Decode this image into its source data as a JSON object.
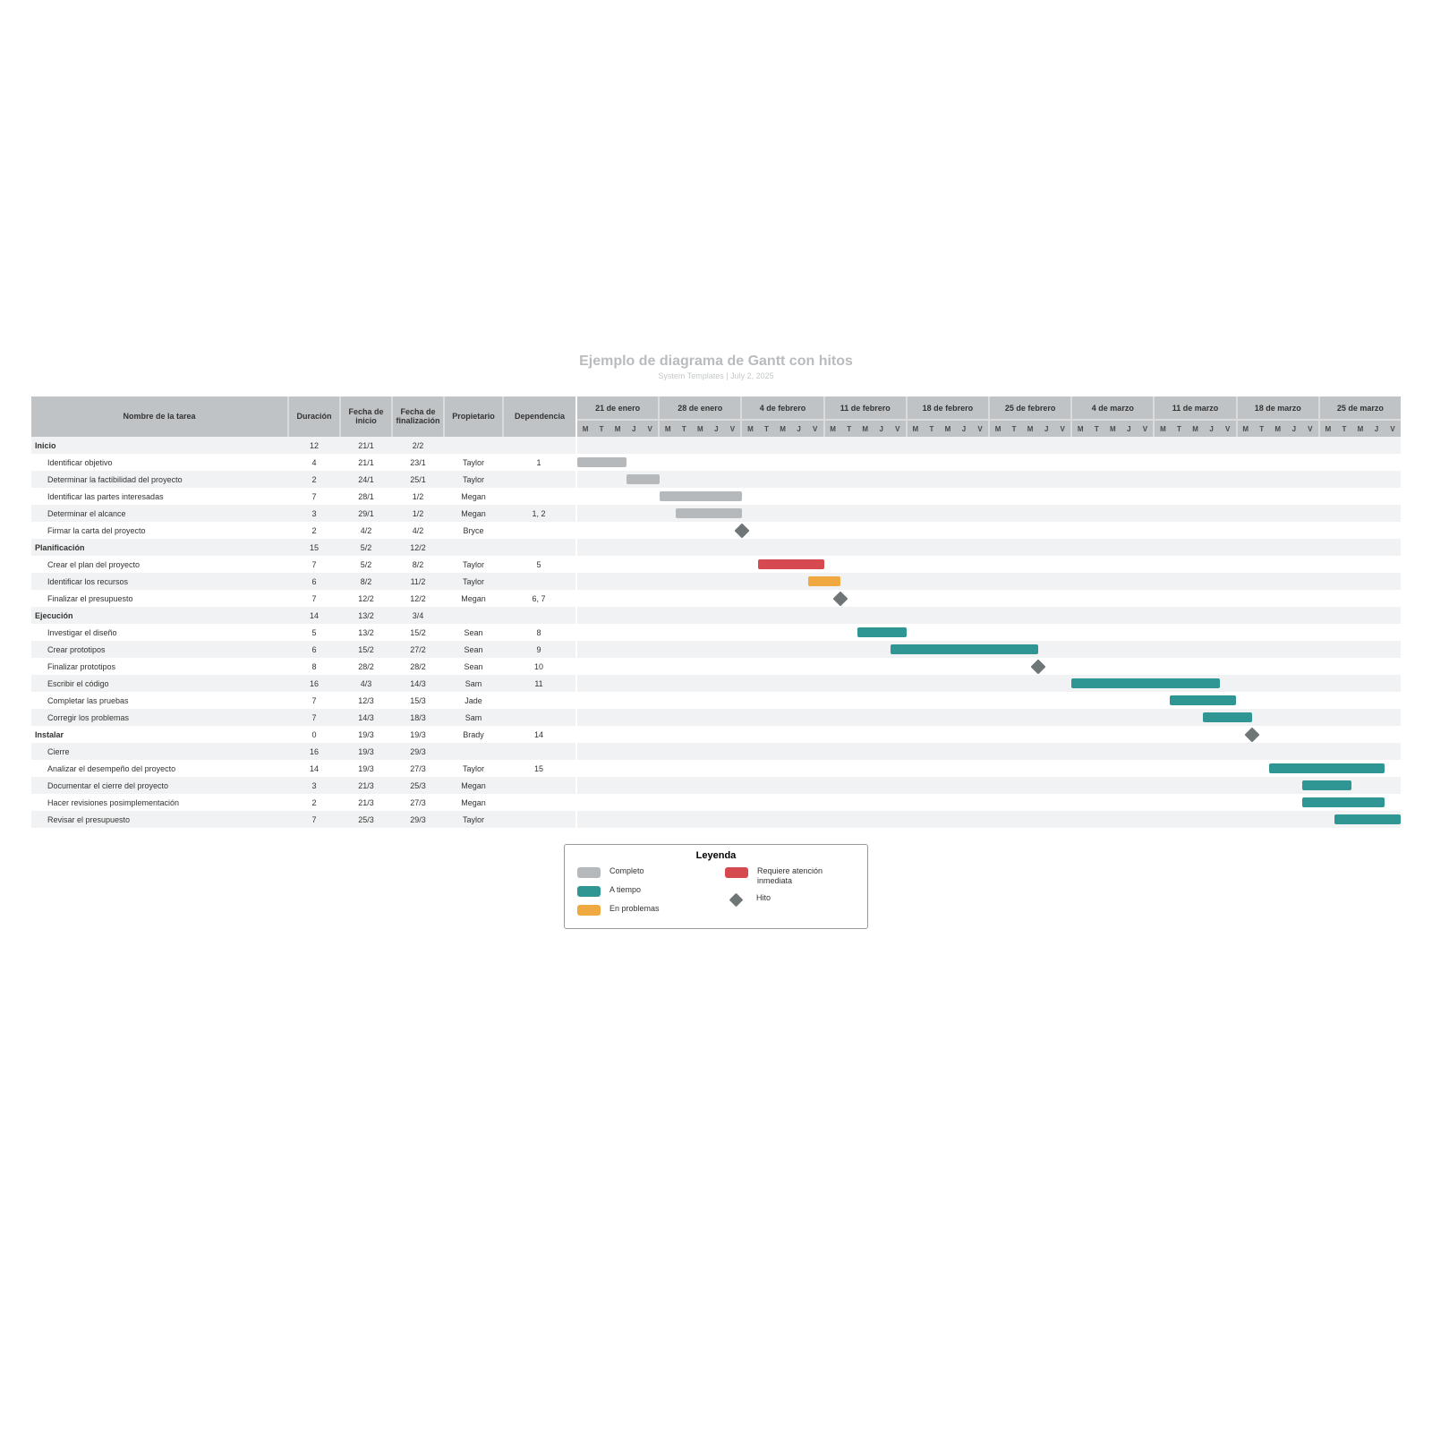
{
  "title": "Ejemplo de diagrama de Gantt con hitos",
  "subtitle": "System Templates  |  July 2, 2025",
  "colors": {
    "complete": "#b5b9bc",
    "ontime": "#2f9693",
    "trouble": "#f0a840",
    "urgent": "#d64a4f",
    "milestone": "#6f7678",
    "header_bg": "#bfc3c6",
    "row_even": "#f1f2f3",
    "row_odd": "#ffffff",
    "dep_line": "#8e9396"
  },
  "columns": {
    "name": "Nombre de la tarea",
    "duration": "Duración",
    "start": "Fecha de inicio",
    "end": "Fecha de finalización",
    "owner": "Propietario",
    "dep": "Dependencia"
  },
  "gantt": {
    "day_labels": [
      "M",
      "T",
      "M",
      "J",
      "V"
    ],
    "weeks": [
      "21 de enero",
      "28 de enero",
      "4 de febrero",
      "11 de febrero",
      "18 de febrero",
      "25 de febrero",
      "4 de marzo",
      "11 de marzo",
      "18 de marzo",
      "25 de marzo"
    ],
    "total_days": 50
  },
  "rows": [
    {
      "type": "group",
      "name": "Inicio",
      "dur": "12",
      "start": "21/1",
      "end": "2/2"
    },
    {
      "type": "task",
      "name": "Identificar objetivo",
      "dur": "4",
      "start": "21/1",
      "end": "23/1",
      "owner": "Taylor",
      "dep": "1",
      "bar": {
        "start": 0,
        "span": 3,
        "status": "complete"
      }
    },
    {
      "type": "task",
      "name": "Determinar la factibilidad del proyecto",
      "dur": "2",
      "start": "24/1",
      "end": "25/1",
      "owner": "Taylor",
      "bar": {
        "start": 3,
        "span": 2,
        "status": "complete"
      }
    },
    {
      "type": "task",
      "name": "Identificar las partes interesadas",
      "dur": "7",
      "start": "28/1",
      "end": "1/2",
      "owner": "Megan",
      "bar": {
        "start": 5,
        "span": 5,
        "status": "complete"
      }
    },
    {
      "type": "task",
      "name": "Determinar el alcance",
      "dur": "3",
      "start": "29/1",
      "end": "1/2",
      "owner": "Megan",
      "dep": "1, 2",
      "bar": {
        "start": 6,
        "span": 4,
        "status": "complete"
      }
    },
    {
      "type": "task",
      "name": "Firmar la carta del proyecto",
      "dur": "2",
      "start": "4/2",
      "end": "4/2",
      "owner": "Bryce",
      "milestone": {
        "day": 10
      }
    },
    {
      "type": "group",
      "name": "Planificación",
      "dur": "15",
      "start": "5/2",
      "end": "12/2"
    },
    {
      "type": "task",
      "name": "Crear el plan del proyecto",
      "dur": "7",
      "start": "5/2",
      "end": "8/2",
      "owner": "Taylor",
      "dep": "5",
      "bar": {
        "start": 11,
        "span": 4,
        "status": "urgent"
      }
    },
    {
      "type": "task",
      "name": "Identificar los recursos",
      "dur": "6",
      "start": "8/2",
      "end": "11/2",
      "owner": "Taylor",
      "bar": {
        "start": 14,
        "span": 2,
        "status": "trouble"
      }
    },
    {
      "type": "task",
      "name": "Finalizar el presupuesto",
      "dur": "7",
      "start": "12/2",
      "end": "12/2",
      "owner": "Megan",
      "dep": "6, 7",
      "milestone": {
        "day": 16
      }
    },
    {
      "type": "group",
      "name": "Ejecución",
      "dur": "14",
      "start": "13/2",
      "end": "3/4"
    },
    {
      "type": "task",
      "name": "Investigar el diseño",
      "dur": "5",
      "start": "13/2",
      "end": "15/2",
      "owner": "Sean",
      "dep": "8",
      "bar": {
        "start": 17,
        "span": 3,
        "status": "ontime"
      }
    },
    {
      "type": "task",
      "name": "Crear prototipos",
      "dur": "6",
      "start": "15/2",
      "end": "27/2",
      "owner": "Sean",
      "dep": "9",
      "bar": {
        "start": 19,
        "span": 9,
        "status": "ontime"
      }
    },
    {
      "type": "task",
      "name": "Finalizar prototipos",
      "dur": "8",
      "start": "28/2",
      "end": "28/2",
      "owner": "Sean",
      "dep": "10",
      "milestone": {
        "day": 28
      }
    },
    {
      "type": "task",
      "name": "Escribir el código",
      "dur": "16",
      "start": "4/3",
      "end": "14/3",
      "owner": "Sam",
      "dep": "11",
      "bar": {
        "start": 30,
        "span": 9,
        "status": "ontime"
      }
    },
    {
      "type": "task",
      "name": "Completar las pruebas",
      "dur": "7",
      "start": "12/3",
      "end": "15/3",
      "owner": "Jade",
      "bar": {
        "start": 36,
        "span": 4,
        "status": "ontime"
      }
    },
    {
      "type": "task",
      "name": "Corregir los problemas",
      "dur": "7",
      "start": "14/3",
      "end": "18/3",
      "owner": "Sam",
      "bar": {
        "start": 38,
        "span": 3,
        "status": "ontime"
      }
    },
    {
      "type": "group",
      "name": "Instalar",
      "dur": "0",
      "start": "19/3",
      "end": "19/3",
      "owner": "Brady",
      "dep": "14",
      "milestone": {
        "day": 41
      }
    },
    {
      "type": "task",
      "name": "Cierre",
      "dur": "16",
      "start": "19/3",
      "end": "29/3"
    },
    {
      "type": "task",
      "name": "Analizar el desempeño del proyecto",
      "dur": "14",
      "start": "19/3",
      "end": "27/3",
      "owner": "Taylor",
      "dep": "15",
      "bar": {
        "start": 42,
        "span": 7,
        "status": "ontime"
      }
    },
    {
      "type": "task",
      "name": "Documentar el cierre del proyecto",
      "dur": "3",
      "start": "21/3",
      "end": "25/3",
      "owner": "Megan",
      "bar": {
        "start": 44,
        "span": 3,
        "status": "ontime"
      }
    },
    {
      "type": "task",
      "name": "Hacer revisiones posimplementación",
      "dur": "2",
      "start": "21/3",
      "end": "27/3",
      "owner": "Megan",
      "bar": {
        "start": 44,
        "span": 5,
        "status": "ontime"
      }
    },
    {
      "type": "task",
      "name": "Revisar el presupuesto",
      "dur": "7",
      "start": "25/3",
      "end": "29/3",
      "owner": "Taylor",
      "bar": {
        "start": 46,
        "span": 4,
        "status": "ontime"
      }
    }
  ],
  "dependencies": [
    {
      "from": 1,
      "fromDay": 3,
      "to": 2,
      "toDay": 3
    },
    {
      "from": 2,
      "fromDay": 5,
      "to": 3,
      "toDay": 5
    },
    {
      "from": 1,
      "fromDay": 3,
      "to": 4,
      "toDay": 6
    },
    {
      "from": 2,
      "fromDay": 5,
      "to": 4,
      "toDay": 6
    },
    {
      "from": 3,
      "fromDay": 10,
      "to": 5,
      "toDay": 10,
      "toMilestone": true
    },
    {
      "from": 5,
      "fromDay": 10,
      "fromMilestone": true,
      "to": 7,
      "toDay": 11
    },
    {
      "from": 7,
      "fromDay": 15,
      "to": 9,
      "toDay": 16,
      "toMilestone": true
    },
    {
      "from": 8,
      "fromDay": 16,
      "to": 9,
      "toDay": 16,
      "toMilestone": true
    },
    {
      "from": 9,
      "fromDay": 16,
      "fromMilestone": true,
      "to": 11,
      "toDay": 17
    },
    {
      "from": 11,
      "fromDay": 20,
      "to": 12,
      "toDay": 19,
      "loop": true
    },
    {
      "from": 12,
      "fromDay": 28,
      "to": 13,
      "toDay": 28,
      "toMilestone": true
    },
    {
      "from": 13,
      "fromDay": 28,
      "fromMilestone": true,
      "to": 14,
      "toDay": 30
    },
    {
      "from": 16,
      "fromDay": 41,
      "to": 17,
      "toDay": 41,
      "toMilestone": true
    },
    {
      "from": 17,
      "fromDay": 41,
      "fromMilestone": true,
      "to": 19,
      "toDay": 42
    }
  ],
  "legend": {
    "title": "Leyenda",
    "items_left": [
      {
        "status": "complete",
        "label": "Completo"
      },
      {
        "status": "ontime",
        "label": "A tiempo"
      },
      {
        "status": "trouble",
        "label": "En problemas"
      }
    ],
    "items_right": [
      {
        "status": "urgent",
        "label": "Requiere atención inmediata"
      },
      {
        "status": "milestone",
        "label": "Hito"
      }
    ]
  }
}
